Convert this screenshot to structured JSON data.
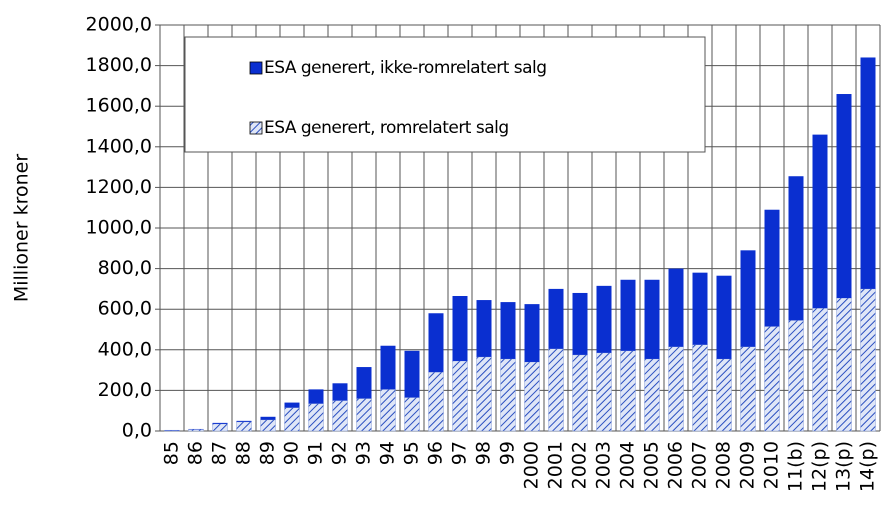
{
  "chart_data": {
    "type": "stacked_bar",
    "y_label": "Millioner kroner",
    "categories": [
      "85",
      "86",
      "87",
      "88",
      "89",
      "90",
      "91",
      "92",
      "93",
      "94",
      "95",
      "96",
      "97",
      "98",
      "99",
      "2000",
      "2001",
      "2002",
      "2003",
      "2004",
      "2005",
      "2006",
      "2007",
      "2008",
      "2009",
      "2010",
      "11(b)",
      "12(p)",
      "13(p)",
      "14(p)"
    ],
    "series": [
      {
        "name": "ESA generert, romrelatert salg",
        "color": "#2a4fc0",
        "pattern": "hatch",
        "values": [
          3,
          8,
          35,
          45,
          55,
          115,
          135,
          150,
          160,
          205,
          165,
          290,
          345,
          365,
          355,
          340,
          405,
          375,
          385,
          395,
          355,
          415,
          425,
          355,
          415,
          515,
          545,
          605,
          655,
          700
        ]
      },
      {
        "name": "ESA generert, ikke-romrelatert salg",
        "color": "#0a2fd0",
        "pattern": "solid",
        "values": [
          2,
          2,
          5,
          5,
          15,
          25,
          70,
          85,
          155,
          215,
          230,
          290,
          320,
          280,
          280,
          285,
          295,
          305,
          330,
          350,
          390,
          385,
          355,
          410,
          475,
          575,
          710,
          855,
          1005,
          1140
        ]
      }
    ],
    "ylim": [
      0,
      2000
    ],
    "yticks": [
      {
        "value": 0,
        "label": "0,0"
      },
      {
        "value": 200,
        "label": "200,0"
      },
      {
        "value": 400,
        "label": "400,0"
      },
      {
        "value": 600,
        "label": "600,0"
      },
      {
        "value": 800,
        "label": "800,0"
      },
      {
        "value": 1000,
        "label": "1000,0"
      },
      {
        "value": 1200,
        "label": "1200,0"
      },
      {
        "value": 1400,
        "label": "1400,0"
      },
      {
        "value": 1600,
        "label": "1600,0"
      },
      {
        "value": 1800,
        "label": "1800,0"
      },
      {
        "value": 2000,
        "label": "2000,0"
      }
    ],
    "grid": true
  }
}
